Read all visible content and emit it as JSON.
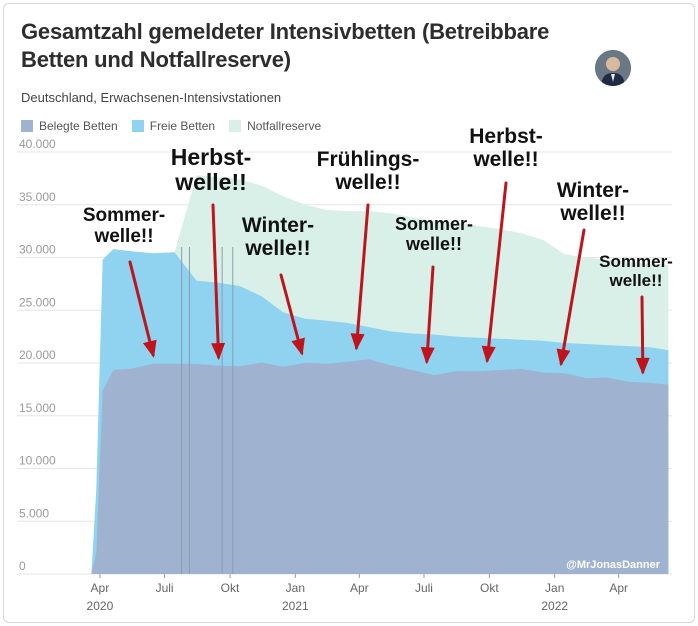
{
  "chart_data": {
    "type": "area",
    "title": "Gesamtzahl gemeldeter Intensivbetten (Betreibbare Betten und Notfallreserve)",
    "subtitle": "Deutschland, Erwachsenen-Intensivstationen",
    "legend": [
      {
        "label": "Belegte Betten",
        "color": "#9fb3d1"
      },
      {
        "label": "Freie Betten",
        "color": "#8fd3f0"
      },
      {
        "label": "Notfallreserve",
        "color": "#d9f0e8"
      }
    ],
    "legend_position": "top-left",
    "ylim": [
      0,
      40000
    ],
    "y_ticks": [
      "0",
      "5.000",
      "10.000",
      "15.000",
      "20.000",
      "25.000",
      "30.000",
      "35.000",
      "40.000"
    ],
    "x_ticks": [
      {
        "date": "2020-04-01",
        "label": "Apr",
        "year": "2020"
      },
      {
        "date": "2020-07-01",
        "label": "Juli",
        "year": ""
      },
      {
        "date": "2020-10-01",
        "label": "Okt",
        "year": ""
      },
      {
        "date": "2021-01-01",
        "label": "Jan",
        "year": "2021"
      },
      {
        "date": "2021-04-01",
        "label": "Apr",
        "year": ""
      },
      {
        "date": "2021-07-01",
        "label": "Juli",
        "year": ""
      },
      {
        "date": "2021-10-01",
        "label": "Okt",
        "year": ""
      },
      {
        "date": "2022-01-01",
        "label": "Jan",
        "year": "2022"
      },
      {
        "date": "2022-04-01",
        "label": "Apr",
        "year": ""
      }
    ],
    "x_range": [
      "2020-03-04",
      "2022-06-15"
    ],
    "grid": true,
    "series": [
      {
        "name": "Belegte Betten",
        "x": [
          "2020-03-20",
          "2020-03-27",
          "2020-04-05",
          "2020-04-20",
          "2020-05-15",
          "2020-06-15",
          "2020-07-15",
          "2020-08-15",
          "2020-09-15",
          "2020-10-15",
          "2020-11-15",
          "2020-12-15",
          "2021-01-15",
          "2021-02-15",
          "2021-03-15",
          "2021-04-15",
          "2021-05-15",
          "2021-06-15",
          "2021-07-15",
          "2021-08-15",
          "2021-09-15",
          "2021-10-15",
          "2021-11-15",
          "2021-12-15",
          "2022-01-15",
          "2022-02-15",
          "2022-03-15",
          "2022-04-15",
          "2022-05-15",
          "2022-06-10"
        ],
        "values": [
          0,
          2000,
          17500,
          19200,
          19600,
          19800,
          20000,
          19900,
          19700,
          19800,
          19900,
          19800,
          19900,
          20000,
          20100,
          20300,
          19900,
          19200,
          19000,
          19100,
          19300,
          19300,
          19400,
          19200,
          18900,
          18700,
          18500,
          18300,
          18100,
          17900
        ]
      },
      {
        "name": "Freie Betten",
        "x": [
          "2020-03-20",
          "2020-03-27",
          "2020-04-05",
          "2020-04-20",
          "2020-05-15",
          "2020-06-15",
          "2020-07-15",
          "2020-08-15",
          "2020-09-15",
          "2020-10-15",
          "2020-11-15",
          "2020-12-15",
          "2021-01-15",
          "2021-02-15",
          "2021-03-15",
          "2021-04-15",
          "2021-05-15",
          "2021-06-15",
          "2021-07-15",
          "2021-08-15",
          "2021-09-15",
          "2021-10-15",
          "2021-11-15",
          "2021-12-15",
          "2022-01-15",
          "2022-02-15",
          "2022-03-15",
          "2022-04-15",
          "2022-05-15",
          "2022-06-10"
        ],
        "values": [
          0,
          8000,
          29800,
          30800,
          30600,
          30400,
          30500,
          27800,
          27600,
          27300,
          26300,
          24800,
          24200,
          24000,
          23800,
          23400,
          23000,
          22800,
          22700,
          22500,
          22400,
          22300,
          22200,
          22100,
          21900,
          21800,
          21700,
          21600,
          21500,
          21200
        ]
      },
      {
        "name": "Notfallreserve",
        "x": [
          "2020-03-20",
          "2020-03-27",
          "2020-04-05",
          "2020-04-20",
          "2020-05-15",
          "2020-06-15",
          "2020-07-15",
          "2020-08-15",
          "2020-09-15",
          "2020-10-15",
          "2020-11-15",
          "2020-12-15",
          "2021-01-15",
          "2021-02-15",
          "2021-03-15",
          "2021-04-15",
          "2021-05-15",
          "2021-06-15",
          "2021-07-15",
          "2021-08-15",
          "2021-09-15",
          "2021-10-15",
          "2021-11-15",
          "2021-12-15",
          "2022-01-15",
          "2022-02-15",
          "2022-03-15",
          "2022-04-15",
          "2022-05-15",
          "2022-06-10"
        ],
        "values": [
          0,
          8000,
          29800,
          30800,
          30600,
          30400,
          30500,
          37800,
          37600,
          37400,
          36800,
          35800,
          35000,
          34500,
          34400,
          34400,
          34200,
          33800,
          33500,
          33300,
          33000,
          32700,
          32300,
          31700,
          30300,
          30000,
          29800,
          29600,
          29400,
          29300
        ]
      }
    ],
    "vertical_lines": [
      "2020-07-25",
      "2020-08-05",
      "2020-09-20",
      "2020-10-05"
    ],
    "annotations": [
      {
        "text": [
          "Sommer-",
          "welle!!"
        ],
        "arrow_to": "2020-06-15",
        "arrow_to_y": 20000,
        "font_size": 19
      },
      {
        "text": [
          "Herbst-",
          "welle!!"
        ],
        "arrow_to": "2020-09-15",
        "arrow_to_y": 19800,
        "font_size": 23
      },
      {
        "text": [
          "Winter-",
          "welle!!"
        ],
        "arrow_to": "2021-01-10",
        "arrow_to_y": 20200,
        "font_size": 21
      },
      {
        "text": [
          "Frühlings-",
          "welle!!"
        ],
        "arrow_to": "2021-03-28",
        "arrow_to_y": 20700,
        "font_size": 21
      },
      {
        "text": [
          "Sommer-",
          "welle!!"
        ],
        "arrow_to": "2021-07-05",
        "arrow_to_y": 19400,
        "font_size": 18
      },
      {
        "text": [
          "Herbst-",
          "welle!!"
        ],
        "arrow_to": "2021-09-28",
        "arrow_to_y": 19500,
        "font_size": 21
      },
      {
        "text": [
          "Winter-",
          "welle!!"
        ],
        "arrow_to": "2022-01-10",
        "arrow_to_y": 19200,
        "font_size": 21
      },
      {
        "text": [
          "Sommer-",
          "welle!!"
        ],
        "arrow_to": "2022-05-05",
        "arrow_to_y": 18400,
        "font_size": 17
      }
    ],
    "watermark": "@MrJonasDanner"
  }
}
